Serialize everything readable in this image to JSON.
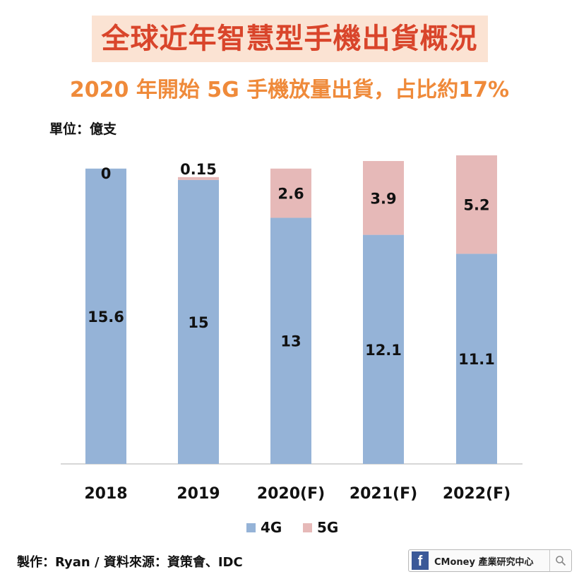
{
  "header": {
    "title": "全球近年智慧型手機出貨概況",
    "subtitle": "2020 年開始 5G 手機放量出貨，占比約17%",
    "unit": "單位：億支"
  },
  "chart_data": {
    "type": "bar",
    "stacked": true,
    "categories": [
      "2018",
      "2019",
      "2020(F)",
      "2021(F)",
      "2022(F)"
    ],
    "series": [
      {
        "name": "4G",
        "values": [
          15.6,
          15,
          13,
          12.1,
          11.1
        ],
        "labels": [
          "15.6",
          "15",
          "13",
          "12.1",
          "11.1"
        ],
        "color": "#95b3d7"
      },
      {
        "name": "5G",
        "values": [
          0,
          0.15,
          2.6,
          3.9,
          5.2
        ],
        "labels": [
          "0",
          "0.15",
          "2.6",
          "3.9",
          "5.2"
        ],
        "color": "#e6b9b8"
      }
    ],
    "ylim": [
      0,
      16.3
    ],
    "grid": false,
    "legend": "bottom"
  },
  "footer": {
    "source": "製作：Ryan / 資料來源：資策會、IDC",
    "brand_text": "CMoney 產業研究中心",
    "fb_letter": "f",
    "fb_icon": "facebook-icon",
    "search_icon": "search-icon"
  }
}
